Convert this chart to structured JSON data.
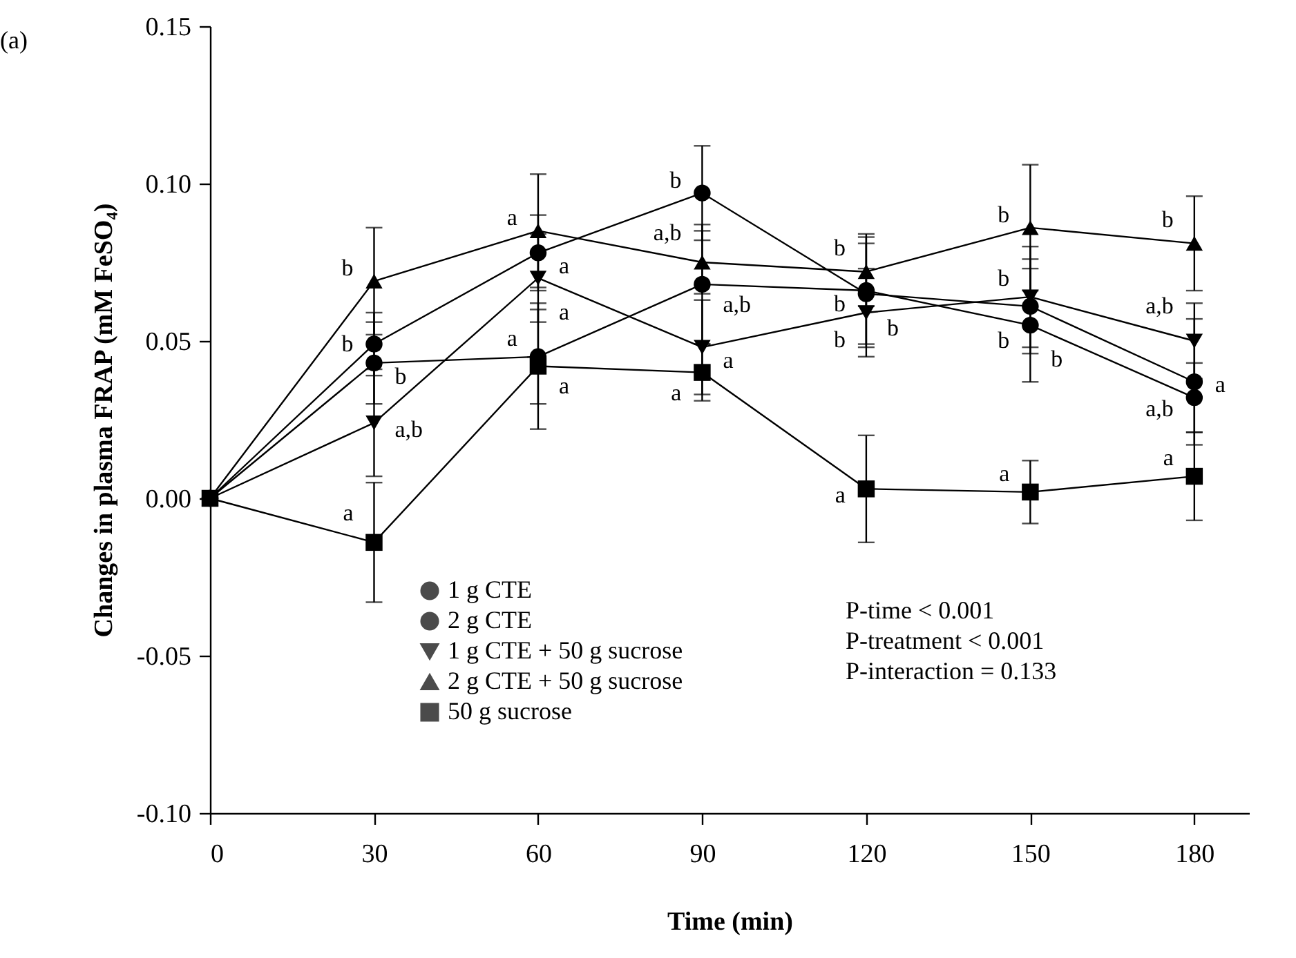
{
  "chart_data": {
    "type": "line",
    "xlabel": "Time (min)",
    "ylabel": "Changes in plasma FRAP (mM FeSO₄)",
    "x": [
      0,
      30,
      60,
      90,
      120,
      150,
      180
    ],
    "xlim": [
      0,
      190
    ],
    "xticks": [
      0,
      30,
      60,
      90,
      120,
      150,
      180
    ],
    "ylim": [
      -0.1,
      0.15
    ],
    "yticks": [
      {
        "value": -0.1,
        "label": "-0.10"
      },
      -0.05,
      {
        "value": 0,
        "label": "0.00"
      },
      0.05,
      {
        "value": 0.1,
        "label": "0.10"
      },
      0.15
    ],
    "grid": false,
    "legend": "bottom left",
    "line_style": "solid",
    "series": [
      {
        "name": "1 g CTE",
        "color": "#000000",
        "marker": "circle",
        "values": [
          0,
          0.043,
          0.045,
          0.068,
          0.066,
          0.055,
          0.032
        ],
        "errors": [
          null,
          0.013,
          0.015,
          0.019,
          0.018,
          0.018,
          0.011
        ]
      },
      {
        "name": "2 g CTE",
        "color": "#000000",
        "marker": "circle",
        "values": [
          0,
          0.049,
          0.078,
          0.097,
          0.065,
          0.061,
          0.037
        ],
        "errors": [
          null,
          0.01,
          0.012,
          0.015,
          0.016,
          0.015,
          0.02
        ]
      },
      {
        "name": "1 g CTE + 50 g sucrose",
        "color": "#000000",
        "marker": "triangle-down",
        "values": [
          0,
          0.024,
          0.07,
          0.048,
          0.059,
          0.064,
          0.05
        ],
        "errors": [
          null,
          0.017,
          0.014,
          0.015,
          0.014,
          0.016,
          0.012
        ]
      },
      {
        "name": "2 g CTE + 50 g sucrose",
        "color": "#000000",
        "marker": "triangle",
        "values": [
          0,
          0.069,
          0.085,
          0.075,
          0.072,
          0.086,
          0.081
        ],
        "errors": [
          null,
          0.017,
          0.018,
          0.01,
          0.011,
          0.02,
          0.015
        ]
      },
      {
        "name": "50 g sucrose",
        "color": "#000000",
        "marker": "square",
        "values": [
          0,
          -0.014,
          0.042,
          0.04,
          0.003,
          0.002,
          0.007
        ],
        "errors": [
          null,
          0.019,
          0.02,
          0.009,
          0.017,
          0.01,
          0.014
        ]
      }
    ],
    "annotations": [
      "(a)",
      "P-time < 0.001",
      "P-treatment < 0.001",
      "P-interaction = 0.133",
      {
        "text": "b",
        "x": 30,
        "y": 0.069
      },
      {
        "text": "b",
        "x": 30,
        "y": 0.049
      },
      {
        "text": "b",
        "x": 30,
        "y": 0.043
      },
      {
        "text": "a,b",
        "x": 30,
        "y": 0.024
      },
      {
        "text": "a",
        "x": 30,
        "y": -0.014
      },
      {
        "text": "a",
        "x": 60,
        "y": 0.085
      },
      {
        "text": "a",
        "x": 60,
        "y": 0.078
      },
      {
        "text": "a",
        "x": 60,
        "y": 0.07
      },
      {
        "text": "a",
        "x": 60,
        "y": 0.045
      },
      {
        "text": "a",
        "x": 60,
        "y": 0.042
      },
      {
        "text": "b",
        "x": 90,
        "y": 0.097
      },
      {
        "text": "a,b",
        "x": 90,
        "y": 0.075
      },
      {
        "text": "a,b",
        "x": 90,
        "y": 0.068
      },
      {
        "text": "a",
        "x": 90,
        "y": 0.048
      },
      {
        "text": "a",
        "x": 90,
        "y": 0.04
      },
      {
        "text": "b",
        "x": 120,
        "y": 0.072
      },
      {
        "text": "b",
        "x": 120,
        "y": 0.066
      },
      {
        "text": "b",
        "x": 120,
        "y": 0.065
      },
      {
        "text": "b",
        "x": 120,
        "y": 0.059
      },
      {
        "text": "a",
        "x": 120,
        "y": 0.003
      },
      {
        "text": "b",
        "x": 150,
        "y": 0.086
      },
      {
        "text": "b",
        "x": 150,
        "y": 0.064
      },
      {
        "text": "b",
        "x": 150,
        "y": 0.061
      },
      {
        "text": "b",
        "x": 150,
        "y": 0.055
      },
      {
        "text": "a",
        "x": 150,
        "y": 0.002
      },
      {
        "text": "b",
        "x": 180,
        "y": 0.081
      },
      {
        "text": "a,b",
        "x": 180,
        "y": 0.05
      },
      {
        "text": "a,b",
        "x": 180,
        "y": 0.037
      },
      {
        "text": "a",
        "x": 180,
        "y": 0.032
      },
      {
        "text": "a",
        "x": 180,
        "y": 0.007
      }
    ]
  }
}
